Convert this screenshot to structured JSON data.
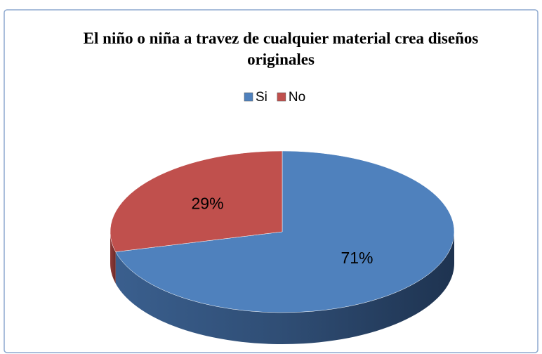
{
  "chart_data": {
    "type": "pie",
    "title": "El niño o niña a travez de cualquier material crea diseños originales",
    "categories": [
      "Si",
      "No"
    ],
    "values": [
      71,
      29
    ],
    "value_labels": [
      "71%",
      "29%"
    ],
    "colors": [
      "#4f81bd",
      "#c0504d"
    ],
    "legend": "top"
  }
}
